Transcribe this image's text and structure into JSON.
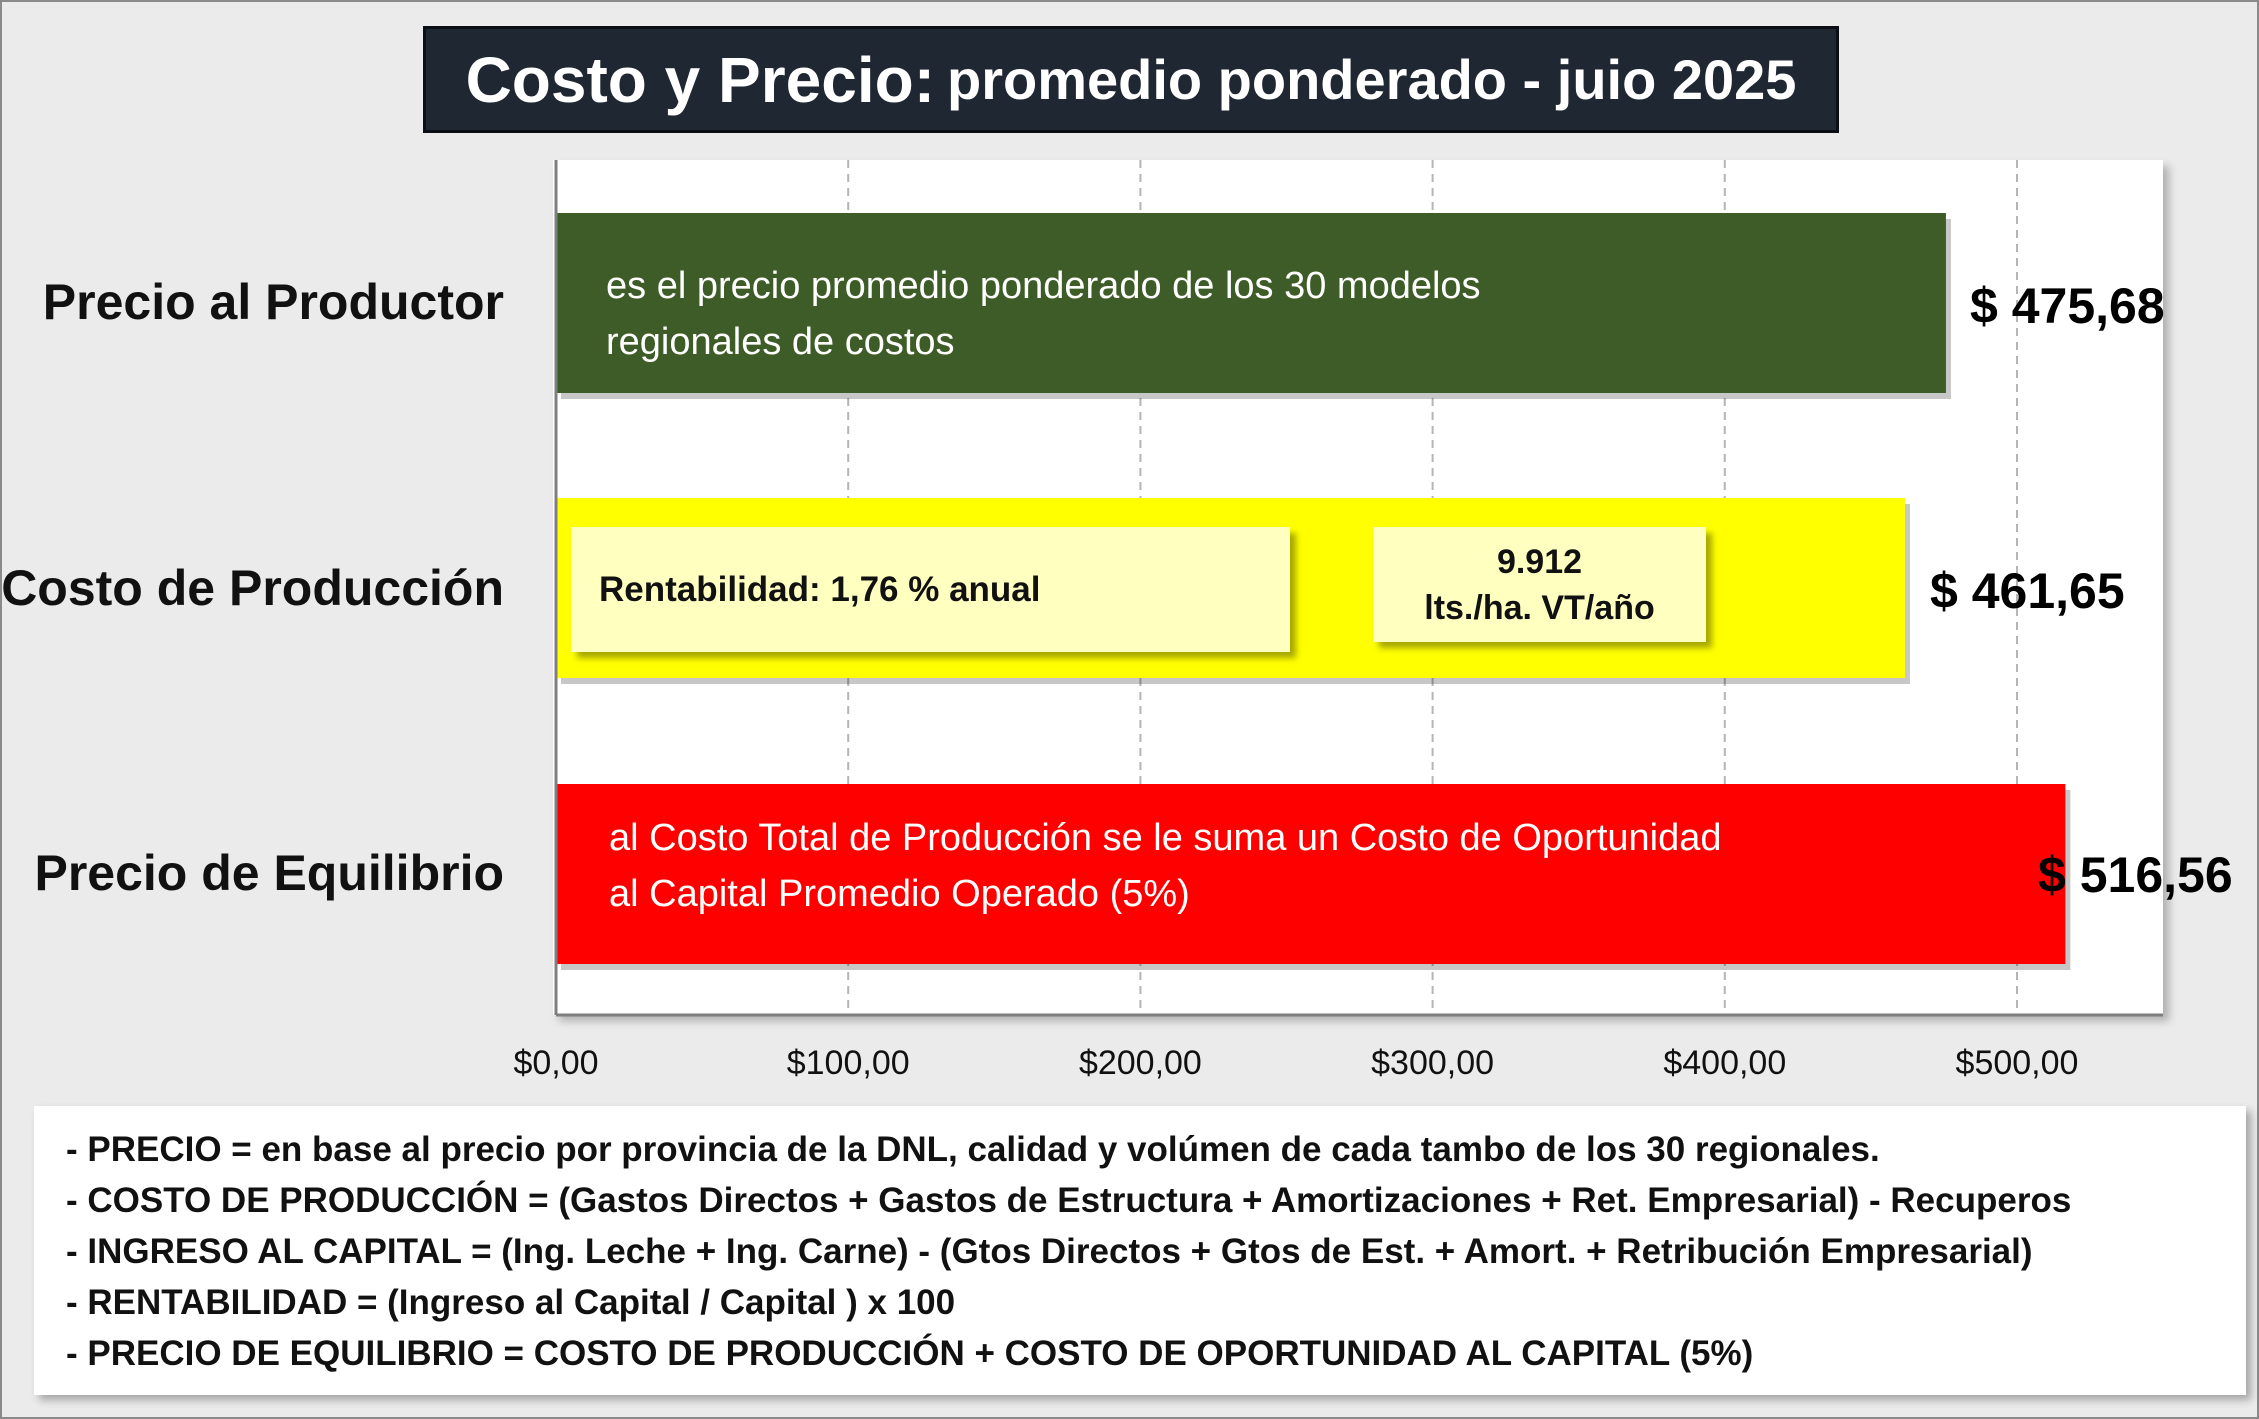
{
  "title": {
    "main": "Costo  y Precio:",
    "sub": "promedio ponderado - juio 2025"
  },
  "chart_data": {
    "type": "bar",
    "orientation": "horizontal",
    "categories": [
      "Precio al Productor",
      "Costo de Producción",
      "Precio de Equilibrio"
    ],
    "values": [
      475.68,
      461.65,
      516.56
    ],
    "value_labels": [
      "$ 475,68",
      "$ 461,65",
      "$ 516,56"
    ],
    "colors": [
      "#3d5c27",
      "#ffff00",
      "#ff0000"
    ],
    "xlim": [
      0,
      550
    ],
    "xticks": [
      0,
      100,
      200,
      300,
      400,
      500
    ],
    "xtick_labels": [
      "$0,00",
      "$100,00",
      "$200,00",
      "$300,00",
      "$400,00",
      "$500,00"
    ],
    "grid": "vertical-dashed",
    "bar_texts": [
      "es el precio promedio ponderado de los 30 modelos\nregionales de costos",
      "",
      "al Costo Total de Producción se le suma un Costo de Oportunidad\nal Capital Promedio Operado (5%)"
    ],
    "annotations": {
      "rentabilidad": "Rentabilidad: 1,76 % anual",
      "produccion_value": "9.912",
      "produccion_unit": "lts./ha. VT/año"
    }
  },
  "notes": [
    "- PRECIO = en base al precio por provincia de la DNL, calidad y volúmen de cada tambo de los 30 regionales.",
    "- COSTO DE PRODUCCIÓN = (Gastos Directos + Gastos de Estructura + Amortizaciones + Ret. Empresarial) - Recuperos",
    "- INGRESO AL CAPITAL = (Ing. Leche + Ing. Carne) - (Gtos Directos + Gtos de Est. + Amort. + Retribución Empresarial)",
    "- RENTABILIDAD = (Ingreso al Capital / Capital ) x 100",
    "- PRECIO DE EQUILIBRIO = COSTO DE PRODUCCIÓN + COSTO DE OPORTUNIDAD AL CAPITAL (5%)"
  ]
}
